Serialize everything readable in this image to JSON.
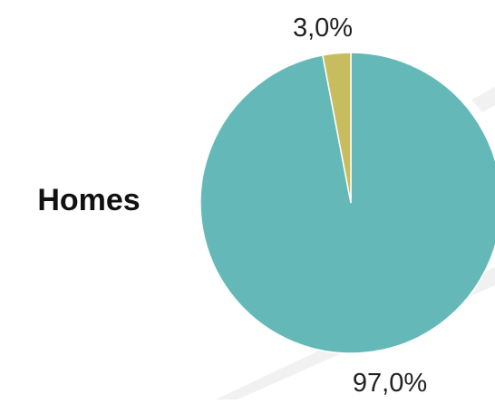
{
  "chart_data": {
    "type": "pie",
    "title": "Homes",
    "slices": [
      {
        "value": 97.0,
        "label": "97,0%",
        "color": "#64b9b8"
      },
      {
        "value": 3.0,
        "label": "3,0%",
        "color": "#c8bd5e"
      }
    ],
    "start_angle_deg": 0,
    "direction": "counterclockwise-from-first-edge",
    "legend": "none"
  }
}
